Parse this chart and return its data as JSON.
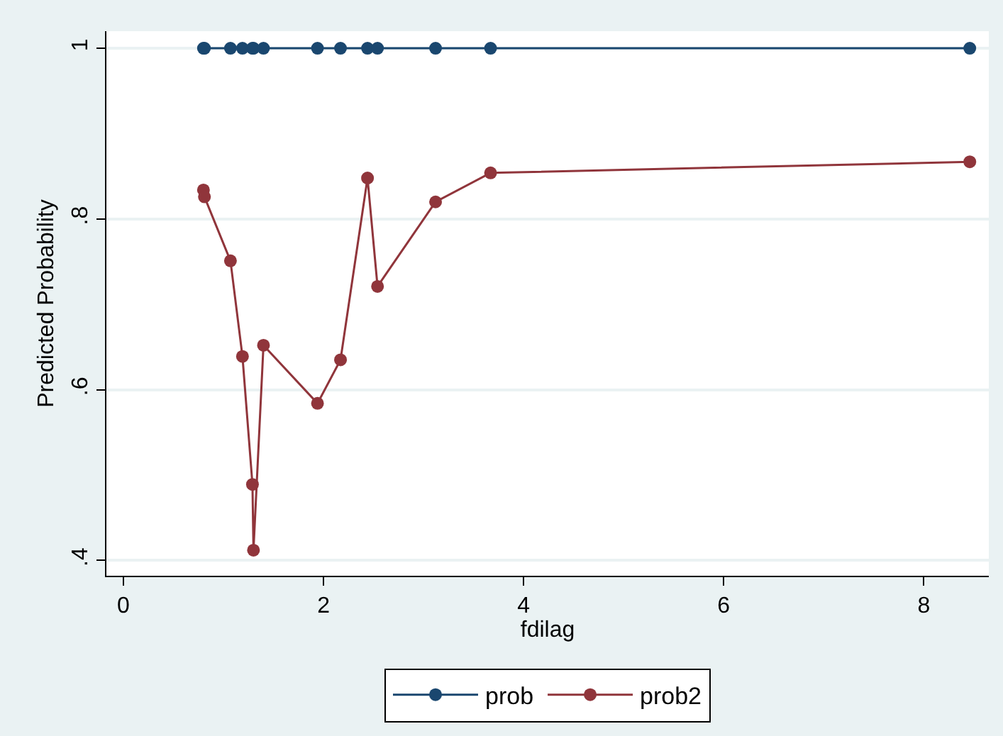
{
  "chart_data": {
    "type": "line",
    "xlabel": "fdilag",
    "ylabel": "Predicted Probability",
    "x": [
      0.8,
      0.81,
      1.07,
      1.19,
      1.29,
      1.3,
      1.4,
      1.94,
      2.17,
      2.44,
      2.54,
      3.12,
      3.67,
      8.46
    ],
    "series": [
      {
        "name": "prob",
        "color": "#1a476f",
        "values": [
          1,
          1,
          1,
          1,
          1,
          1,
          1,
          1,
          1,
          1,
          1,
          1,
          1,
          1
        ]
      },
      {
        "name": "prob2",
        "color": "#90353b",
        "values": [
          0.834,
          0.826,
          0.751,
          0.639,
          0.489,
          0.412,
          0.652,
          0.584,
          0.635,
          0.848,
          0.721,
          0.82,
          0.854,
          0.867
        ]
      }
    ],
    "xlim": [
      -0.17,
      8.65
    ],
    "xticks": [
      0,
      2,
      4,
      6,
      8
    ],
    "ylim": [
      0.382,
      1.02
    ],
    "yticks": [
      {
        "value": 0.4,
        "label": ".4"
      },
      {
        "value": 0.6,
        "label": ".6"
      },
      {
        "value": 0.8,
        "label": ".8"
      },
      {
        "value": 1,
        "label": "1"
      }
    ],
    "grid": "y",
    "legend": "bottom",
    "marker": "circle",
    "line_style": "solid"
  }
}
